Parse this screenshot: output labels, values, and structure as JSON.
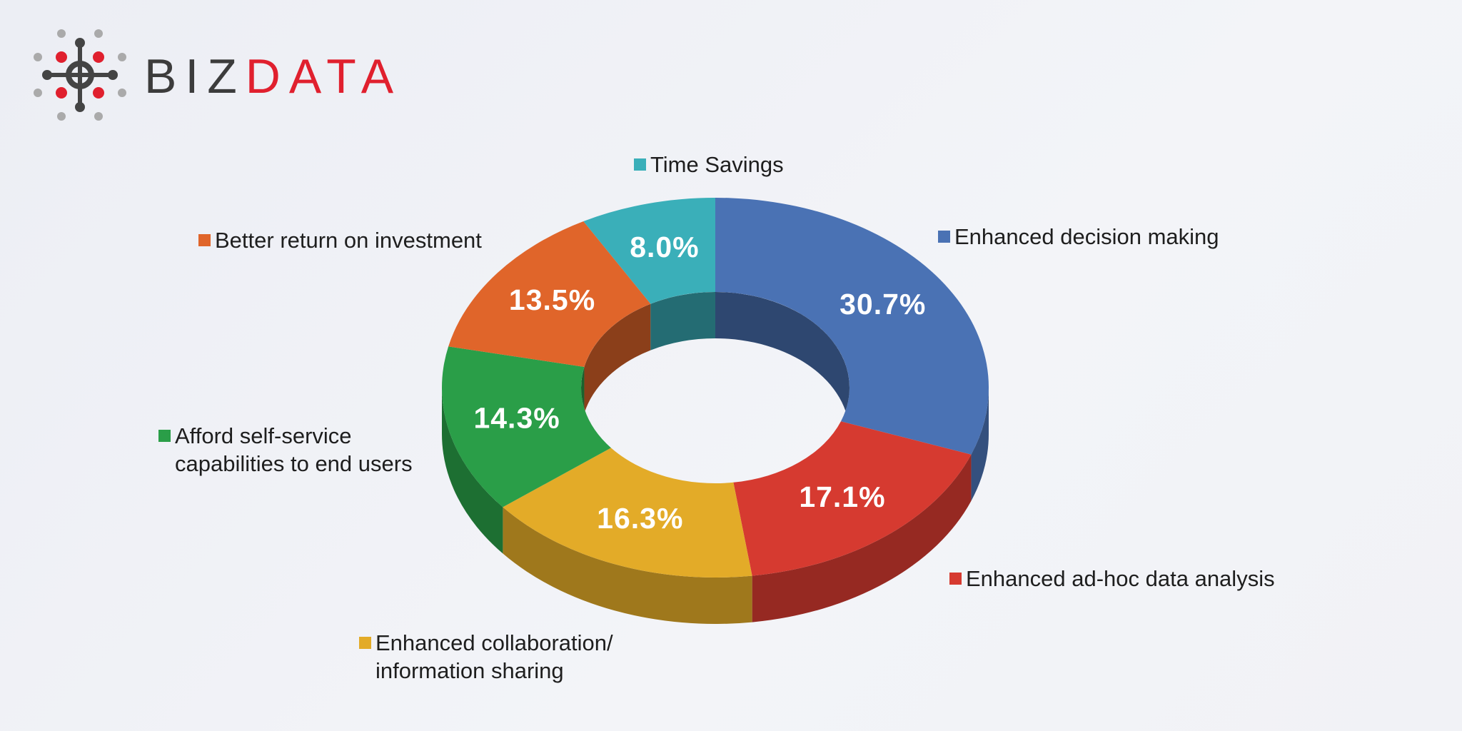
{
  "brand": {
    "prefix": "BIZ",
    "suffix": "DATA"
  },
  "chart_data": {
    "type": "donut3d",
    "categories": [
      "Enhanced decision making",
      "Enhanced ad-hoc data analysis",
      "Enhanced collaboration/\ninformation sharing",
      "Afford self-service\ncapabilities to end users",
      "Better return on investment",
      "Time Savings"
    ],
    "values": [
      30.7,
      17.1,
      16.3,
      14.3,
      13.5,
      8.0
    ],
    "value_labels": [
      "30.7%",
      "17.1%",
      "16.3%",
      "14.3%",
      "13.5%",
      "8.0%"
    ],
    "colors": [
      "#4a72b4",
      "#d63a30",
      "#e3ab28",
      "#2a9e48",
      "#e0652a",
      "#3aafb9"
    ]
  }
}
